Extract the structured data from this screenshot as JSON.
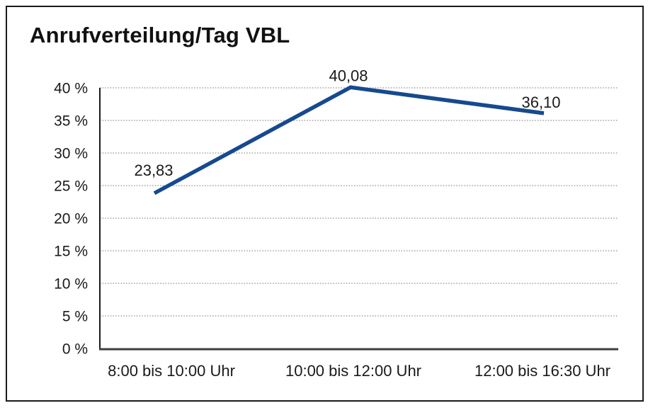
{
  "chart_data": {
    "type": "line",
    "title": "Anrufverteilung/Tag VBL",
    "categories": [
      "8:00 bis 10:00 Uhr",
      "10:00 bis 12:00 Uhr",
      "12:00 bis 16:30 Uhr"
    ],
    "values": [
      23.83,
      40.08,
      36.1
    ],
    "data_labels": [
      "23,83",
      "40,08",
      "36,10"
    ],
    "xlabel": "",
    "ylabel": "",
    "ylim": [
      0,
      40
    ],
    "ytick_step": 5,
    "ytick_labels": [
      "0 %",
      "5 %",
      "10 %",
      "15 %",
      "20 %",
      "25 %",
      "30 %",
      "35 %",
      "40 %"
    ],
    "grid": "horizontal-dotted",
    "legend": "none",
    "line_color": "#17498f",
    "grid_color": "#8c8c8c",
    "axis_color": "#1a1a1a",
    "text_color": "#1a1a1a"
  }
}
